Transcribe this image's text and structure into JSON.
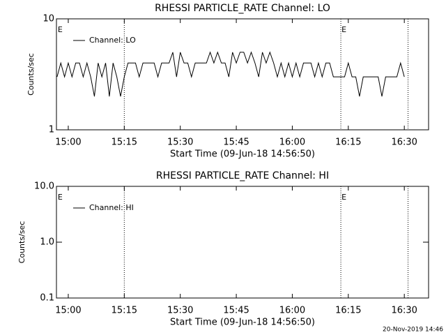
{
  "chart_data": [
    {
      "type": "line",
      "title": "RHESSI PARTICLE_RATE Channel: LO",
      "xlabel": "Start Time (09-Jun-18 14:56:50)",
      "ylabel": "Counts/sec",
      "log_y": true,
      "xlim": [
        "14:56:50",
        "16:36:30"
      ],
      "ylim": [
        1,
        10
      ],
      "yticks": [
        1,
        10
      ],
      "xticks": [
        "15:00",
        "15:15",
        "15:30",
        "15:45",
        "16:00",
        "16:15",
        "16:30"
      ],
      "markers": [
        "15:15",
        "16:13",
        "16:31"
      ],
      "annotations": [
        {
          "text": "E",
          "x": "14:57"
        },
        {
          "text": "E",
          "x": "16:13"
        }
      ],
      "x": [
        "14:57",
        "14:58",
        "14:59",
        "15:00",
        "15:01",
        "15:02",
        "15:03",
        "15:04",
        "15:05",
        "15:06",
        "15:07",
        "15:08",
        "15:09",
        "15:10",
        "15:11",
        "15:12",
        "15:13",
        "15:14",
        "15:15",
        "15:16",
        "15:17",
        "15:18",
        "15:19",
        "15:20",
        "15:21",
        "15:22",
        "15:23",
        "15:24",
        "15:25",
        "15:26",
        "15:27",
        "15:28",
        "15:29",
        "15:30",
        "15:31",
        "15:32",
        "15:33",
        "15:34",
        "15:35",
        "15:36",
        "15:37",
        "15:38",
        "15:39",
        "15:40",
        "15:41",
        "15:42",
        "15:43",
        "15:44",
        "15:45",
        "15:46",
        "15:47",
        "15:48",
        "15:49",
        "15:50",
        "15:51",
        "15:52",
        "15:53",
        "15:54",
        "15:55",
        "15:56",
        "15:57",
        "15:58",
        "15:59",
        "16:00",
        "16:01",
        "16:02",
        "16:03",
        "16:04",
        "16:05",
        "16:06",
        "16:07",
        "16:08",
        "16:09",
        "16:10",
        "16:11",
        "16:12",
        "16:13",
        "16:14",
        "16:15",
        "16:16",
        "16:17",
        "16:18",
        "16:19",
        "16:20",
        "16:21",
        "16:22",
        "16:23",
        "16:24",
        "16:25",
        "16:26",
        "16:27",
        "16:28",
        "16:29",
        "16:30"
      ],
      "series": [
        {
          "name": "Channel: LO",
          "color": "#000000",
          "values": [
            3,
            4,
            3,
            4,
            3,
            4,
            4,
            3,
            4,
            3,
            2,
            4,
            3,
            4,
            2,
            4,
            3,
            2,
            3,
            4,
            4,
            4,
            3,
            4,
            4,
            4,
            4,
            3,
            4,
            4,
            4,
            5,
            3,
            5,
            4,
            4,
            3,
            4,
            4,
            4,
            4,
            5,
            4,
            5,
            4,
            4,
            3,
            5,
            4,
            5,
            5,
            4,
            5,
            4,
            3,
            5,
            4,
            5,
            4,
            3,
            4,
            3,
            4,
            3,
            4,
            3,
            4,
            4,
            4,
            3,
            4,
            3,
            4,
            4,
            3,
            3,
            3,
            3,
            4,
            3,
            3,
            2,
            3,
            3,
            3,
            3,
            3,
            2,
            3,
            3,
            3,
            3,
            4,
            3
          ]
        }
      ]
    },
    {
      "type": "line",
      "title": "RHESSI PARTICLE_RATE Channel: HI",
      "xlabel": "Start Time (09-Jun-18 14:56:50)",
      "ylabel": "Counts/sec",
      "log_y": true,
      "xlim": [
        "14:56:50",
        "16:36:30"
      ],
      "ylim": [
        0.1,
        10
      ],
      "yticks": [
        0.1,
        {
          "value": 1,
          "label": "1.0"
        },
        {
          "value": 10,
          "label": "10.0"
        }
      ],
      "xticks": [
        "15:00",
        "15:15",
        "15:30",
        "15:45",
        "16:00",
        "16:15",
        "16:30"
      ],
      "markers": [
        "15:15",
        "16:13",
        "16:31"
      ],
      "annotations": [
        {
          "text": "E",
          "x": "14:57"
        },
        {
          "text": "E",
          "x": "16:13"
        }
      ],
      "x": [],
      "series": [
        {
          "name": "Channel: HI",
          "color": "#000000",
          "values": []
        }
      ]
    }
  ],
  "footer": "20-Nov-2019 14:46"
}
